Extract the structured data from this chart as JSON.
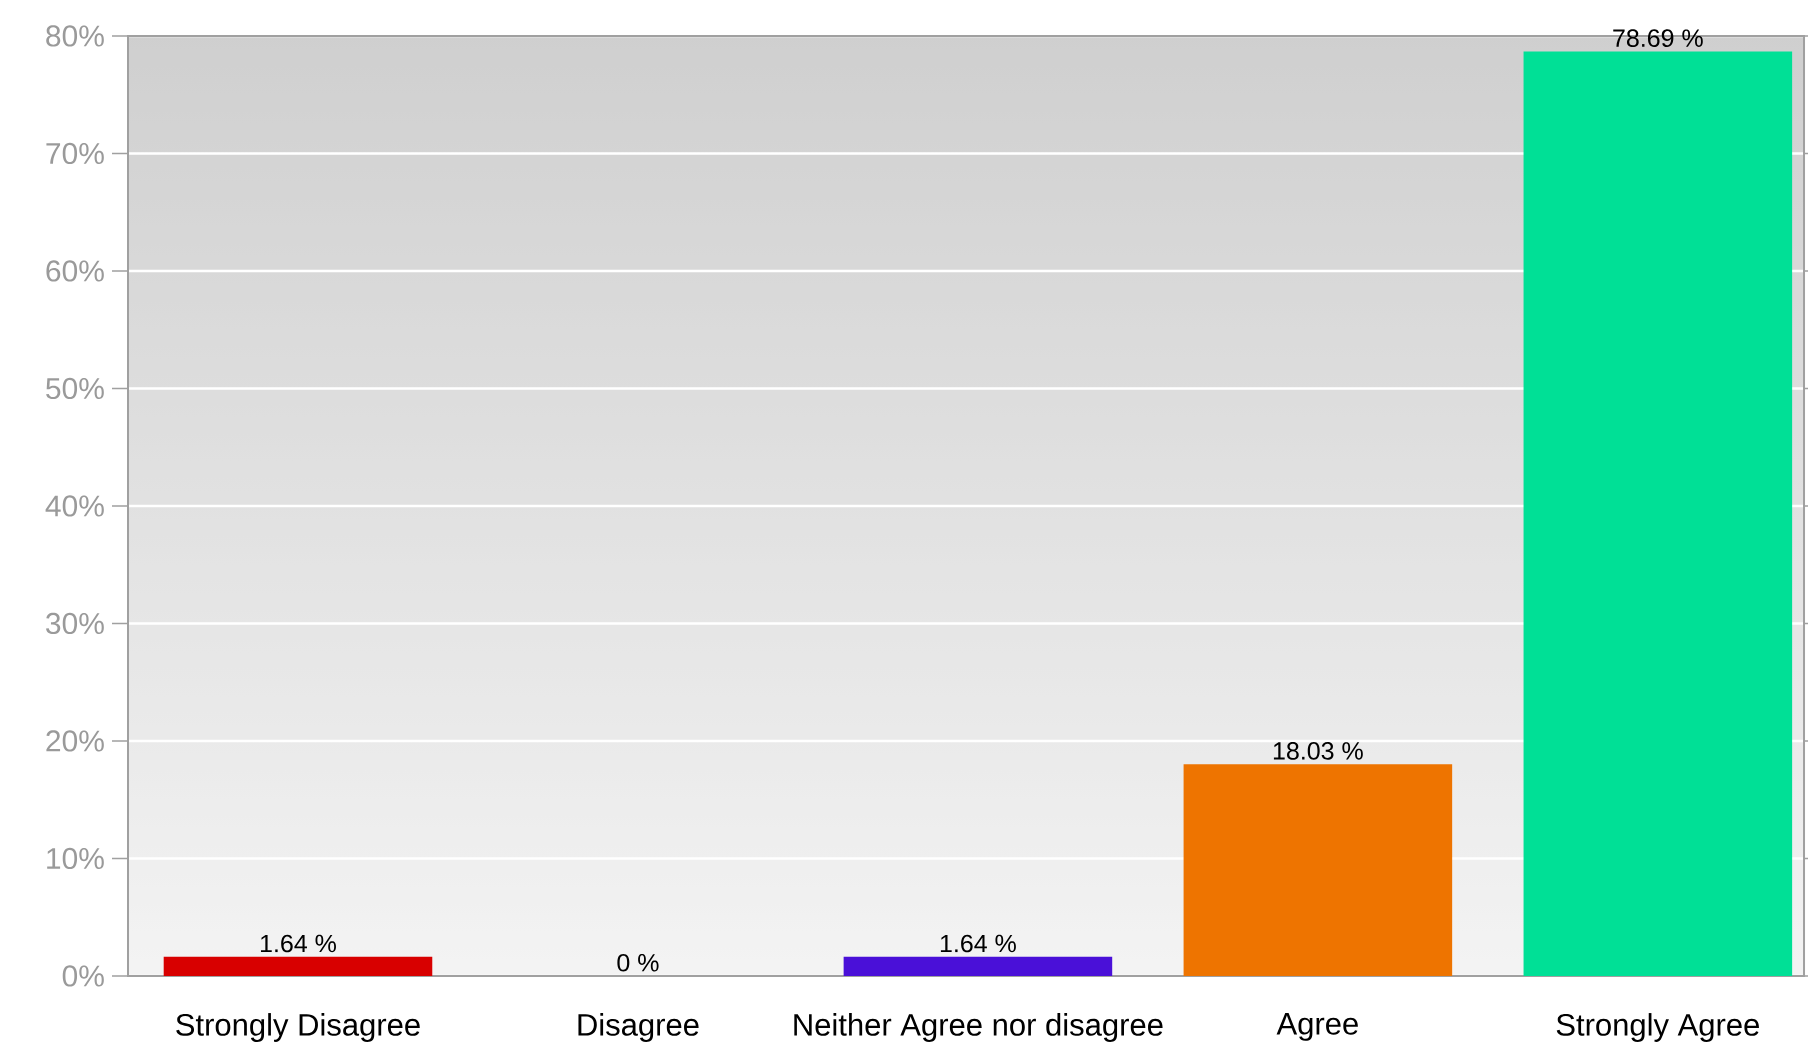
{
  "chart_data": {
    "type": "bar",
    "categories": [
      "Strongly Disagree",
      "Disagree",
      "Neither Agree nor disagree",
      "Agree",
      "Strongly Agree"
    ],
    "values": [
      1.64,
      0,
      1.64,
      18.03,
      78.69
    ],
    "colors": [
      "#d80000",
      null,
      "#4a10d8",
      "#ee7400",
      "#00e096"
    ],
    "value_labels": [
      "1.64 %",
      "0 %",
      "1.64 %",
      "18.03 %",
      "78.69 %"
    ],
    "ylim": [
      0,
      80
    ],
    "yticks": [
      {
        "value": 0,
        "label": "0%"
      },
      {
        "value": 10,
        "label": "10%"
      },
      {
        "value": 20,
        "label": "20%"
      },
      {
        "value": 30,
        "label": "30%"
      },
      {
        "value": 40,
        "label": "40%"
      },
      {
        "value": 50,
        "label": "50%"
      },
      {
        "value": 60,
        "label": "60%"
      },
      {
        "value": 70,
        "label": "70%"
      },
      {
        "value": 80,
        "label": "80%"
      }
    ],
    "grid": "y"
  }
}
